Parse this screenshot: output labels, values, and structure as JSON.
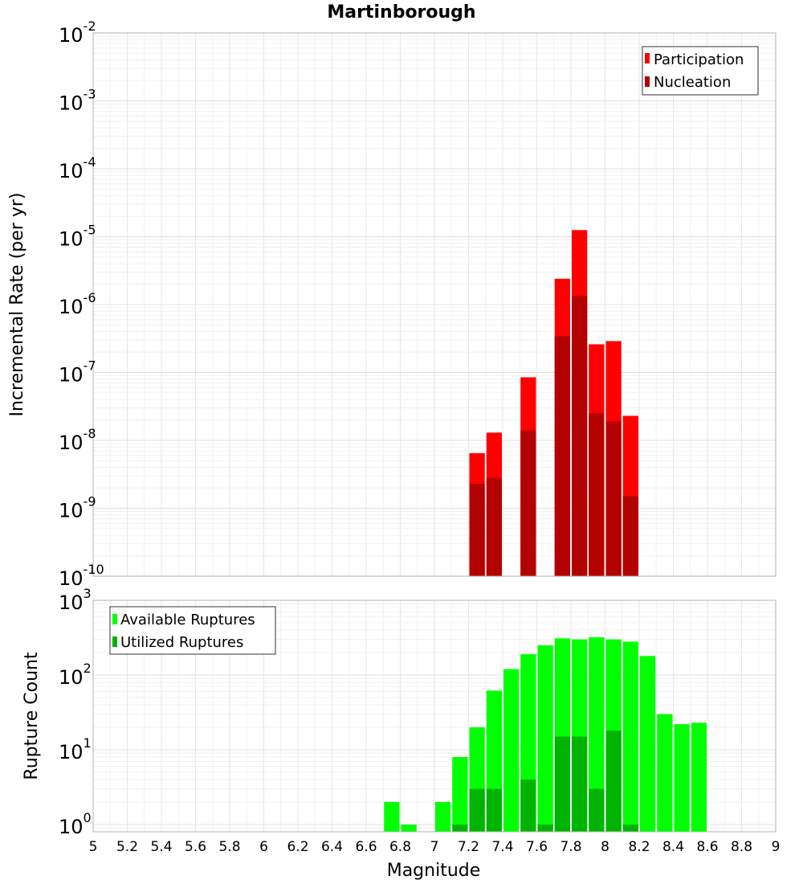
{
  "chart_data": [
    {
      "type": "bar",
      "title": "Martinborough",
      "xlabel": "",
      "ylabel": "Incremental Rate (per yr)",
      "yscale": "log",
      "xlim": [
        5,
        9
      ],
      "ylim": [
        1e-10,
        0.01
      ],
      "y_ticks": [
        {
          "base": "10",
          "exp": "-10",
          "value": 1e-10
        },
        {
          "base": "10",
          "exp": "-9",
          "value": 1e-09
        },
        {
          "base": "10",
          "exp": "-8",
          "value": 1e-08
        },
        {
          "base": "10",
          "exp": "-7",
          "value": 1e-07
        },
        {
          "base": "10",
          "exp": "-6",
          "value": 1e-06
        },
        {
          "base": "10",
          "exp": "-5",
          "value": 1e-05
        },
        {
          "base": "10",
          "exp": "-4",
          "value": 0.0001
        },
        {
          "base": "10",
          "exp": "-3",
          "value": 0.001
        },
        {
          "base": "10",
          "exp": "-2",
          "value": 0.01
        }
      ],
      "grid": true,
      "legend_position": "top-right",
      "series": [
        {
          "name": "Participation",
          "color": "#ff0000",
          "x": [
            7.25,
            7.35,
            7.55,
            7.75,
            7.85,
            7.95,
            8.05,
            8.15
          ],
          "values": [
            6.5e-09,
            1.3e-08,
            8.5e-08,
            2.4e-06,
            1.25e-05,
            2.6e-07,
            2.9e-07,
            2.3e-08
          ]
        },
        {
          "name": "Nucleation",
          "color": "#b30000",
          "x": [
            7.25,
            7.35,
            7.55,
            7.75,
            7.85,
            7.95,
            8.05,
            8.15
          ],
          "values": [
            2.3e-09,
            2.8e-09,
            1.4e-08,
            3.4e-07,
            1.35e-06,
            2.5e-08,
            1.9e-08,
            1.5e-09
          ]
        }
      ]
    },
    {
      "type": "bar",
      "title": "",
      "xlabel": "Magnitude",
      "ylabel": "Rupture Count",
      "yscale": "log",
      "xlim": [
        5,
        9
      ],
      "ylim": [
        0.8,
        1000
      ],
      "y_ticks": [
        {
          "base": "10",
          "exp": "0",
          "value": 1
        },
        {
          "base": "10",
          "exp": "1",
          "value": 10
        },
        {
          "base": "10",
          "exp": "2",
          "value": 100
        },
        {
          "base": "10",
          "exp": "3",
          "value": 1000
        }
      ],
      "x_ticks": [
        "5",
        "5.2",
        "5.4",
        "5.6",
        "5.8",
        "6",
        "6.2",
        "6.4",
        "6.6",
        "6.8",
        "7",
        "7.2",
        "7.4",
        "7.6",
        "7.8",
        "8",
        "8.2",
        "8.4",
        "8.6",
        "8.8",
        "9"
      ],
      "grid": true,
      "legend_position": "top-left",
      "series": [
        {
          "name": "Available Ruptures",
          "color": "#00ff00",
          "x": [
            6.75,
            6.85,
            7.05,
            7.15,
            7.25,
            7.35,
            7.45,
            7.55,
            7.65,
            7.75,
            7.85,
            7.95,
            8.05,
            8.15,
            8.25,
            8.35,
            8.45,
            8.55
          ],
          "values": [
            2,
            1,
            2,
            8,
            20,
            62,
            120,
            190,
            250,
            310,
            300,
            320,
            300,
            280,
            180,
            30,
            22,
            23
          ]
        },
        {
          "name": "Utilized Ruptures",
          "color": "#00b300",
          "x": [
            7.15,
            7.25,
            7.35,
            7.55,
            7.65,
            7.75,
            7.85,
            7.95,
            8.05,
            8.15
          ],
          "values": [
            1,
            3,
            3,
            4,
            1,
            15,
            15,
            3,
            18,
            1
          ]
        }
      ]
    }
  ]
}
